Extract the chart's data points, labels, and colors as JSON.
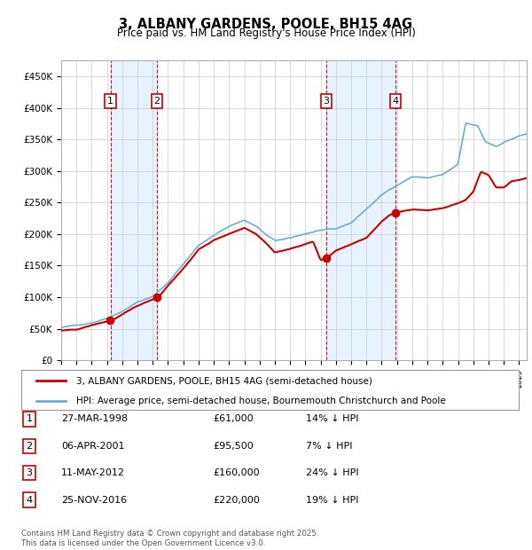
{
  "title": "3, ALBANY GARDENS, POOLE, BH15 4AG",
  "subtitle": "Price paid vs. HM Land Registry's House Price Index (HPI)",
  "ylabel_ticks": [
    "£0",
    "£50K",
    "£100K",
    "£150K",
    "£200K",
    "£250K",
    "£300K",
    "£350K",
    "£400K",
    "£450K"
  ],
  "ytick_values": [
    0,
    50000,
    100000,
    150000,
    200000,
    250000,
    300000,
    350000,
    400000,
    450000
  ],
  "ylim": [
    0,
    475000
  ],
  "xlim_start": 1995.0,
  "xlim_end": 2025.5,
  "legend_line1": "3, ALBANY GARDENS, POOLE, BH15 4AG (semi-detached house)",
  "legend_line2": "HPI: Average price, semi-detached house, Bournemouth Christchurch and Poole",
  "footnote": "Contains HM Land Registry data © Crown copyright and database right 2025.\nThis data is licensed under the Open Government Licence v3.0.",
  "sales": [
    {
      "num": 1,
      "date": "27-MAR-1998",
      "price": 61000,
      "year": 1998.23,
      "pct": "14%",
      "dir": "↓"
    },
    {
      "num": 2,
      "date": "06-APR-2001",
      "price": 95500,
      "year": 2001.27,
      "pct": "7%",
      "dir": "↓"
    },
    {
      "num": 3,
      "date": "11-MAY-2012",
      "price": 160000,
      "year": 2012.37,
      "pct": "24%",
      "dir": "↓"
    },
    {
      "num": 4,
      "date": "25-NOV-2016",
      "price": 220000,
      "year": 2016.9,
      "pct": "19%",
      "dir": "↓"
    }
  ],
  "hpi_color": "#6baed6",
  "price_color": "#cc0000",
  "vline_color": "#cc0000",
  "shade_color": "#ddeeff",
  "grid_color": "#cccccc",
  "background_color": "#ffffff",
  "table_rows": [
    [
      "1",
      "27-MAR-1998",
      "£61,000",
      "14% ↓ HPI"
    ],
    [
      "2",
      "06-APR-2001",
      "£95,500",
      "7% ↓ HPI"
    ],
    [
      "3",
      "11-MAY-2012",
      "£160,000",
      "24% ↓ HPI"
    ],
    [
      "4",
      "25-NOV-2016",
      "£220,000",
      "19% ↓ HPI"
    ]
  ]
}
